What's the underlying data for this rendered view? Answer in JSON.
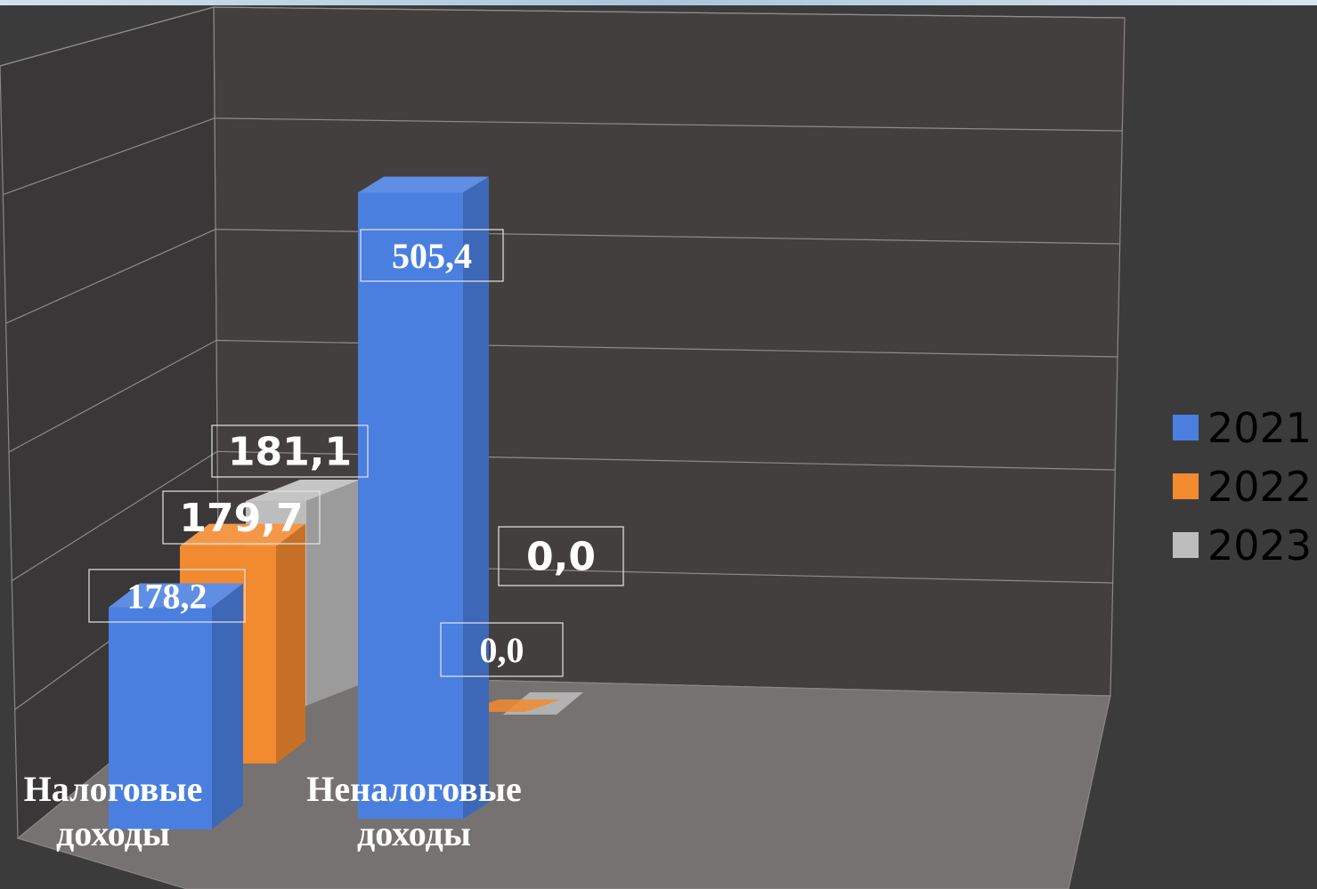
{
  "chart_data": {
    "type": "bar",
    "categories": [
      "Налоговые доходы",
      "Неналоговые доходы"
    ],
    "category_lines": [
      [
        "Налоговые",
        "доходы"
      ],
      [
        "Неналоговые",
        "доходы"
      ]
    ],
    "series": [
      {
        "name": "2021",
        "values": [
          178.2,
          505.4
        ],
        "labels": [
          "178,2",
          "505,4"
        ],
        "color": "#4a7fe0"
      },
      {
        "name": "2022",
        "values": [
          179.7,
          0.0
        ],
        "labels": [
          "179,7",
          "0,0"
        ],
        "color": "#f28a2f"
      },
      {
        "name": "2023",
        "values": [
          181.1,
          0.0
        ],
        "labels": [
          "181,1",
          "0,0"
        ],
        "color": "#bdbdbd"
      }
    ],
    "ylim": [
      0,
      600
    ],
    "grid": true,
    "legend_position": "right",
    "three_d": true
  }
}
